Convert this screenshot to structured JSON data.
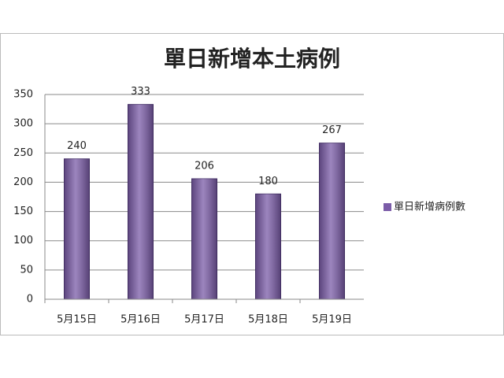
{
  "chart_data": {
    "type": "bar",
    "title": "單日新增本土病例",
    "categories": [
      "5月15日",
      "5月16日",
      "5月17日",
      "5月18日",
      "5月19日"
    ],
    "series": [
      {
        "name": "單日新增病例數",
        "color": "#7b5ca8",
        "values": [
          240,
          333,
          206,
          180,
          267
        ]
      }
    ],
    "ylim": [
      0,
      350
    ],
    "yticks": [
      0,
      50,
      100,
      150,
      200,
      250,
      300,
      350
    ],
    "grid": true,
    "legend": "right"
  }
}
